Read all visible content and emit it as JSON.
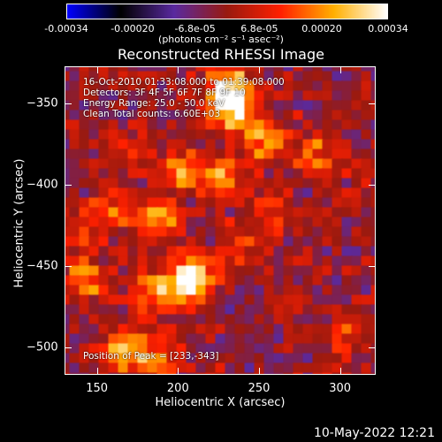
{
  "chart_data": {
    "type": "heatmap",
    "title": "Reconstructed RHESSI Image",
    "xlabel": "Heliocentric X (arcsec)",
    "ylabel": "Heliocentric Y (arcsec)",
    "xlim": [
      130,
      322
    ],
    "ylim": [
      -517,
      -327
    ],
    "x_ticks": [
      150,
      200,
      250,
      300
    ],
    "y_ticks": [
      -350,
      -400,
      -450,
      -500
    ],
    "colorbar": {
      "range": [
        -0.00034,
        0.00034
      ],
      "ticks": [
        {
          "value": -0.00034,
          "label": "-0.00034"
        },
        {
          "value": -0.0002,
          "label": "-0.00020"
        },
        {
          "value": -6.8e-05,
          "label": "-6.8e-05"
        },
        {
          "value": 6.8e-05,
          "label": "6.8e-05"
        },
        {
          "value": 0.0002,
          "label": "0.00020"
        },
        {
          "value": 0.00034,
          "label": "0.00034"
        }
      ],
      "unit": "(photons cm⁻² s⁻¹ asec⁻²)",
      "colors": [
        "#0000ff",
        "#000000",
        "#5a2aa0",
        "#9a1a10",
        "#ff2000",
        "#ffb000",
        "#ffffff"
      ]
    },
    "annotations": [
      "16-Oct-2010 01:33:08.000 to 01:39:08.000",
      "Detectors: 3F 4F 5F 6F 7F 8F 9F 10",
      "Energy Range: 25.0 - 50.0 keV",
      "Clean    Total counts: 6.60E+03"
    ],
    "peak_label": "Position of Peak = [233,-343]",
    "sources": [
      {
        "x": 233,
        "y": -343,
        "value": 0.00034
      },
      {
        "x": 238,
        "y": -358,
        "value": 0.0003
      },
      {
        "x": 258,
        "y": -375,
        "value": 0.00026
      },
      {
        "x": 290,
        "y": -385,
        "value": 0.00018
      },
      {
        "x": 205,
        "y": -395,
        "value": 0.00024
      },
      {
        "x": 230,
        "y": -398,
        "value": 0.00022
      },
      {
        "x": 175,
        "y": -385,
        "value": 0.00014
      },
      {
        "x": 190,
        "y": -425,
        "value": 0.00025
      },
      {
        "x": 160,
        "y": -420,
        "value": 0.00016
      },
      {
        "x": 142,
        "y": -435,
        "value": 0.00012
      },
      {
        "x": 205,
        "y": -465,
        "value": 0.0003
      },
      {
        "x": 215,
        "y": -458,
        "value": 0.00022
      },
      {
        "x": 185,
        "y": -470,
        "value": 0.00018
      },
      {
        "x": 145,
        "y": -462,
        "value": 0.00022
      },
      {
        "x": 170,
        "y": -505,
        "value": 0.00028
      },
      {
        "x": 190,
        "y": -510,
        "value": 0.0002
      },
      {
        "x": 305,
        "y": -495,
        "value": 0.00012
      },
      {
        "x": 240,
        "y": -440,
        "value": 0.00012
      },
      {
        "x": 260,
        "y": -420,
        "value": 0.00012
      }
    ]
  },
  "timestamp": "10-May-2022 12:21"
}
